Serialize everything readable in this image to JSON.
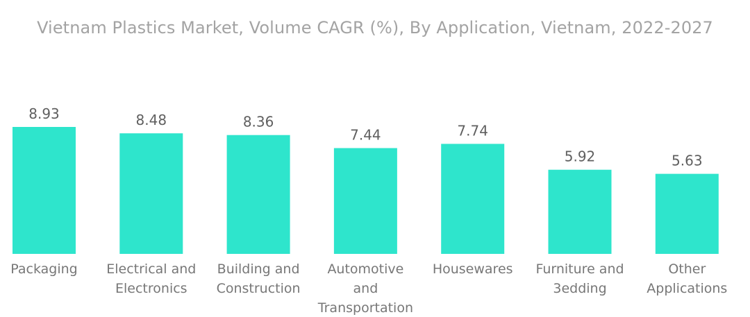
{
  "chart_data": {
    "type": "bar",
    "title": "Vietnam Plastics Market, Volume CAGR (%), By Application, Vietnam, 2022-2027",
    "xlabel": "",
    "ylabel": "",
    "categories": [
      [
        "Packaging"
      ],
      [
        "Electrical and",
        "Electronics"
      ],
      [
        "Building and",
        "Construction"
      ],
      [
        "Automotive",
        "and",
        "Transportation"
      ],
      [
        "Housewares"
      ],
      [
        "Furniture and",
        "3edding"
      ],
      [
        "Other",
        "Applications"
      ]
    ],
    "values": [
      8.93,
      8.48,
      8.36,
      7.44,
      7.74,
      5.92,
      5.63
    ],
    "value_labels": [
      "8.93",
      "8.48",
      "8.36",
      "7.44",
      "7.74",
      "5.92",
      "5.63"
    ],
    "ylim": [
      0,
      8.93
    ],
    "grid": false,
    "legend": "none",
    "bar_color": "#2ee5cc"
  }
}
